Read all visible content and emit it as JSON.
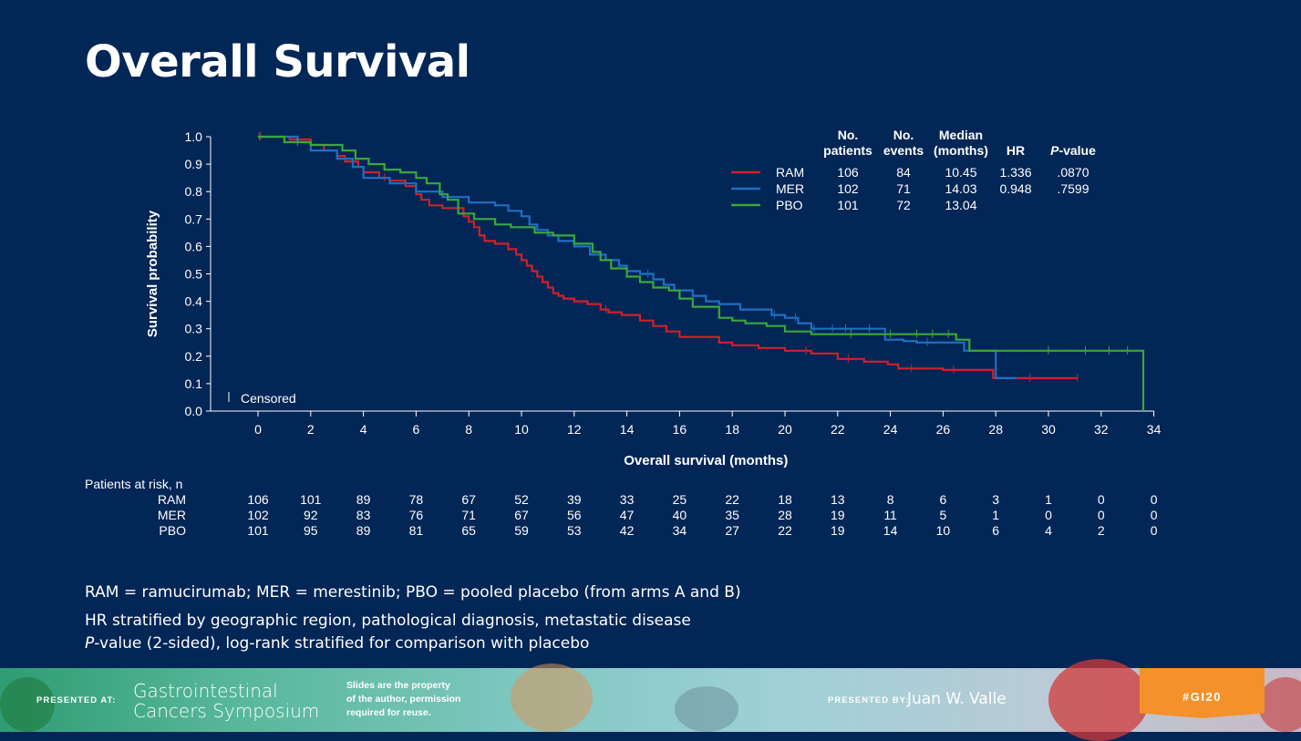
{
  "slide": {
    "title": "Overall Survival"
  },
  "chart_data": {
    "type": "line",
    "xlabel": "Overall survival (months)",
    "ylabel": "Survival probability",
    "xlim": [
      -1.8,
      34
    ],
    "ylim": [
      0,
      1.0
    ],
    "x_ticks": [
      0,
      2,
      4,
      6,
      8,
      10,
      12,
      14,
      16,
      18,
      20,
      22,
      24,
      26,
      28,
      30,
      32,
      34
    ],
    "y_ticks": [
      "0.0",
      "0.1",
      "0.2",
      "0.3",
      "0.4",
      "0.5",
      "0.6",
      "0.7",
      "0.8",
      "0.9",
      "1.0"
    ],
    "censored_label": "Censored",
    "table_headers": [
      [
        "No.",
        "patients"
      ],
      [
        "No.",
        "events"
      ],
      [
        "Median",
        "(months)"
      ],
      [
        "",
        "HR"
      ],
      [
        "",
        "P-value"
      ]
    ],
    "series": [
      {
        "name": "RAM",
        "color": "#d0202a",
        "patients": "106",
        "events": "84",
        "median": "10.45",
        "hr": "1.336",
        "p": ".0870",
        "x": [
          0,
          1.2,
          2,
          2.5,
          3,
          3.3,
          3.8,
          4,
          4.6,
          5,
          5.6,
          6,
          6.2,
          6.5,
          7,
          7.8,
          8,
          8.2,
          8.4,
          8.6,
          9,
          9.5,
          9.8,
          10,
          10.2,
          10.4,
          10.6,
          10.8,
          11,
          11.2,
          11.4,
          11.6,
          12,
          12.5,
          13,
          13.3,
          13.8,
          14.5,
          15,
          15.5,
          16,
          17.5,
          18,
          19,
          20,
          21,
          22,
          23,
          23.9,
          24.3,
          25,
          26,
          27,
          27.9,
          31.1
        ],
        "y": [
          1.0,
          0.99,
          0.97,
          0.95,
          0.93,
          0.91,
          0.89,
          0.87,
          0.85,
          0.84,
          0.82,
          0.79,
          0.77,
          0.75,
          0.74,
          0.71,
          0.69,
          0.67,
          0.64,
          0.62,
          0.61,
          0.59,
          0.57,
          0.55,
          0.53,
          0.51,
          0.49,
          0.47,
          0.45,
          0.43,
          0.42,
          0.41,
          0.4,
          0.39,
          0.37,
          0.36,
          0.35,
          0.33,
          0.31,
          0.29,
          0.27,
          0.25,
          0.24,
          0.23,
          0.22,
          0.21,
          0.19,
          0.18,
          0.17,
          0.155,
          0.155,
          0.15,
          0.15,
          0.12,
          0.12
        ],
        "censored_x": [
          0.1,
          4.8,
          13.2,
          20.8,
          22.4,
          24.8,
          26.4,
          29.3,
          31.1
        ]
      },
      {
        "name": "MER",
        "color": "#1f6fc4",
        "patients": "102",
        "events": "71",
        "median": "14.03",
        "hr": "0.948",
        "p": ".7599",
        "x": [
          0,
          1.5,
          2,
          3,
          3.6,
          4,
          5,
          6,
          7,
          8,
          9,
          9.5,
          10,
          10.3,
          10.6,
          11,
          11.4,
          12,
          12.6,
          13.2,
          13.7,
          14,
          14.5,
          15,
          15.4,
          15.8,
          16.5,
          17,
          17.5,
          18.3,
          19.5,
          20,
          20.5,
          21,
          23.8,
          24.5,
          25,
          26.4,
          26.8,
          27.8,
          28,
          28.8
        ],
        "y": [
          1.0,
          0.98,
          0.95,
          0.92,
          0.89,
          0.85,
          0.83,
          0.8,
          0.78,
          0.76,
          0.75,
          0.73,
          0.71,
          0.68,
          0.66,
          0.64,
          0.62,
          0.6,
          0.57,
          0.55,
          0.53,
          0.51,
          0.5,
          0.48,
          0.46,
          0.44,
          0.42,
          0.4,
          0.39,
          0.37,
          0.35,
          0.34,
          0.32,
          0.3,
          0.26,
          0.255,
          0.25,
          0.25,
          0.22,
          0.22,
          0.12,
          0.12
        ],
        "censored_x": [
          0.05,
          14.8,
          19.6,
          20.4,
          21.1,
          21.8,
          22.3,
          23.2,
          25.4
        ]
      },
      {
        "name": "PBO",
        "color": "#3aa83a",
        "patients": "101",
        "events": "72",
        "median": "13.04",
        "hr": "",
        "p": "",
        "x": [
          0,
          1.0,
          1.6,
          2.0,
          3.2,
          3.7,
          4.2,
          4.8,
          5.4,
          6.0,
          6.4,
          6.9,
          7.2,
          7.6,
          8.2,
          9.0,
          9.6,
          10.5,
          11.2,
          12.0,
          12.7,
          13.0,
          13.4,
          14.0,
          14.5,
          15.0,
          15.6,
          16.0,
          16.5,
          17.5,
          18.0,
          18.5,
          19.3,
          20.0,
          21.0,
          24.8,
          25.4,
          26.0,
          26.5,
          27.0,
          33.6,
          33.6
        ],
        "y": [
          1.0,
          0.98,
          0.98,
          0.97,
          0.95,
          0.92,
          0.9,
          0.88,
          0.87,
          0.85,
          0.83,
          0.79,
          0.77,
          0.72,
          0.7,
          0.68,
          0.67,
          0.65,
          0.64,
          0.61,
          0.58,
          0.55,
          0.52,
          0.49,
          0.47,
          0.45,
          0.44,
          0.41,
          0.38,
          0.34,
          0.33,
          0.32,
          0.31,
          0.29,
          0.28,
          0.28,
          0.28,
          0.28,
          0.26,
          0.22,
          0.22,
          0.0
        ],
        "censored_x": [
          1.5,
          22.5,
          24.0,
          25.0,
          25.6,
          26.2,
          30.0,
          31.4,
          32.3,
          33.0
        ]
      }
    ]
  },
  "risk_table": {
    "title": "Patients at risk, n",
    "times": [
      0,
      2,
      4,
      6,
      8,
      10,
      12,
      14,
      16,
      18,
      20,
      22,
      24,
      26,
      28,
      30,
      32,
      34
    ],
    "rows": [
      {
        "label": "RAM",
        "values": [
          "106",
          "101",
          "89",
          "78",
          "67",
          "52",
          "39",
          "33",
          "25",
          "22",
          "18",
          "13",
          "8",
          "6",
          "3",
          "1",
          "0",
          "0"
        ]
      },
      {
        "label": "MER",
        "values": [
          "102",
          "92",
          "83",
          "76",
          "71",
          "67",
          "56",
          "47",
          "40",
          "35",
          "28",
          "19",
          "11",
          "5",
          "1",
          "0",
          "0",
          "0"
        ]
      },
      {
        "label": "PBO",
        "values": [
          "101",
          "95",
          "89",
          "81",
          "65",
          "59",
          "53",
          "42",
          "34",
          "27",
          "22",
          "19",
          "14",
          "10",
          "6",
          "4",
          "2",
          "0"
        ]
      }
    ]
  },
  "footnotes": {
    "line1": "RAM = ramucirumab; MER = merestinib; PBO = pooled placebo (from arms A and B)",
    "line2": "HR stratified by geographic region, pathological diagnosis, metastatic disease",
    "line3_prefix": "P",
    "line3_rest": "-value (2-sided), log-rank stratified for comparison with placebo"
  },
  "banner": {
    "presented_at": "PRESENTED AT:",
    "symposium_line1": "Gastrointestinal",
    "symposium_line2": "Cancers Symposium",
    "property_line1": "Slides are the property",
    "property_line2": "of the author, permission",
    "property_line3": "required for reuse.",
    "presented_by": "PRESENTED BY:",
    "presenter": "Juan W. Valle",
    "hashtag": "#GI20"
  }
}
